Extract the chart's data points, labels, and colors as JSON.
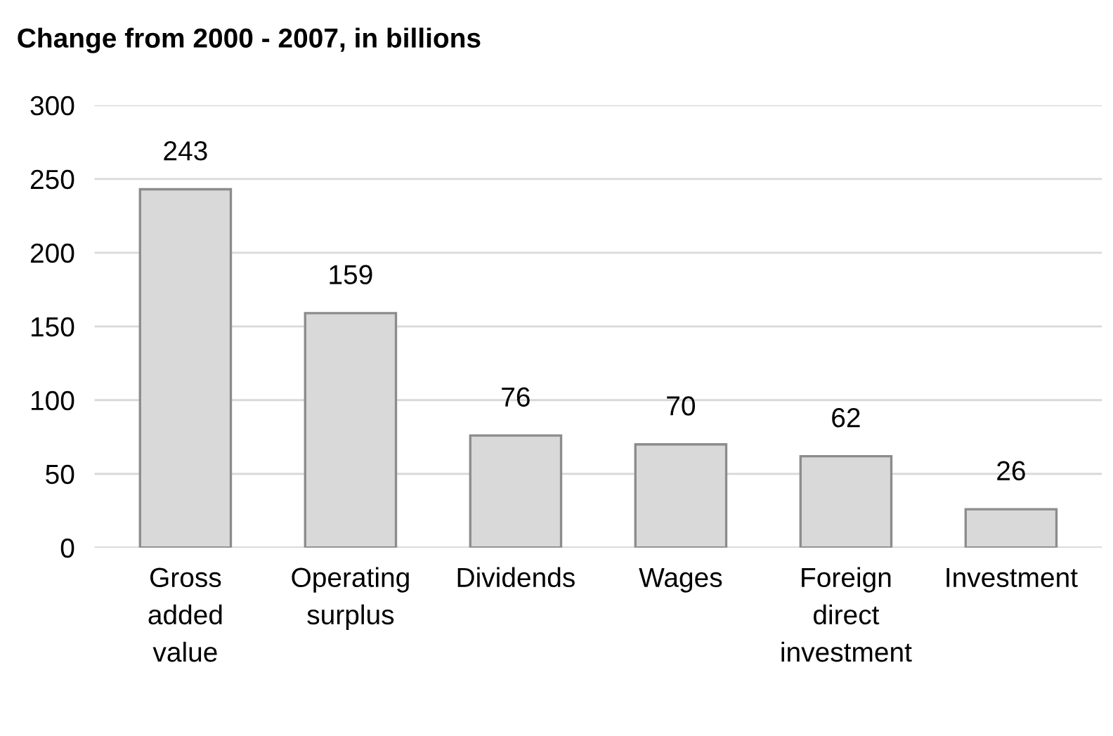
{
  "chart_data": {
    "type": "bar",
    "title": "Change from 2000 - 2007, in billions",
    "categories": [
      "Gross added value",
      "Operating surplus",
      "Dividends",
      "Wages",
      "Foreign direct investment",
      "Investment"
    ],
    "values": [
      243,
      159,
      76,
      70,
      62,
      26
    ],
    "color": "#d9d9d9",
    "ylim": [
      0,
      300
    ],
    "yticks": [
      0,
      50,
      100,
      150,
      200,
      250,
      300
    ],
    "grid": "y",
    "data_labels": true
  }
}
